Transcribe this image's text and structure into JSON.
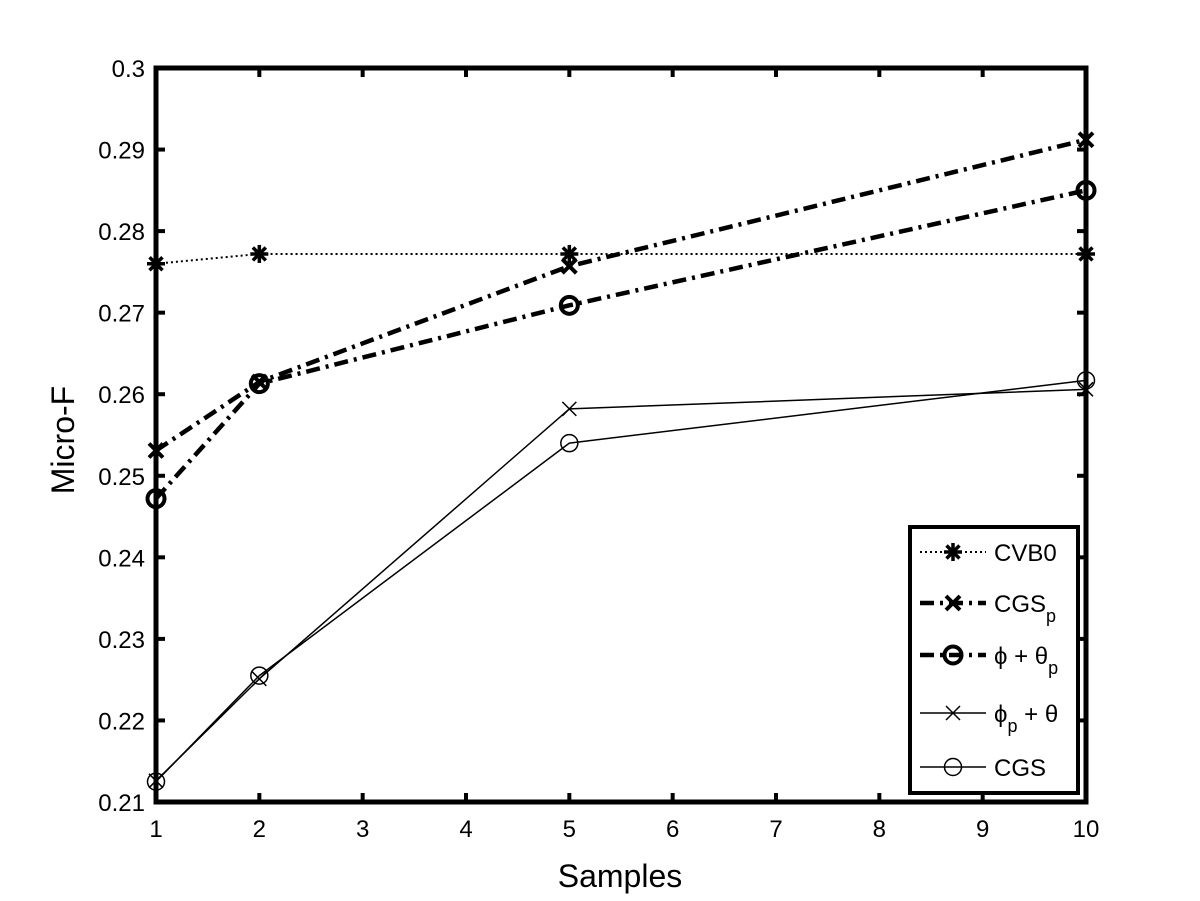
{
  "chart_data": {
    "type": "line",
    "title": "",
    "xlabel": "Samples",
    "ylabel": "Micro-F",
    "xlim": [
      1,
      10
    ],
    "ylim": [
      0.21,
      0.3
    ],
    "xticks": [
      "1",
      "2",
      "3",
      "4",
      "5",
      "6",
      "7",
      "8",
      "9",
      "10"
    ],
    "yticks": [
      "0.21",
      "0.22",
      "0.23",
      "0.24",
      "0.25",
      "0.26",
      "0.27",
      "0.28",
      "0.29",
      "0.3"
    ],
    "x": [
      1,
      2,
      5,
      10
    ],
    "grid": false,
    "legend_position": "bottom-right",
    "series": [
      {
        "name": "CVB0",
        "legend": {
          "base": "CVB0",
          "sub": "",
          "suffix": ""
        },
        "values": [
          0.276,
          0.2772,
          0.2772,
          0.2772
        ],
        "line_style": "dotted",
        "marker": "asterisk",
        "color": "#000000"
      },
      {
        "name": "CGSp",
        "legend": {
          "base": "CGS",
          "sub": "p",
          "suffix": ""
        },
        "values": [
          0.2531,
          0.2615,
          0.2757,
          0.2912
        ],
        "line_style": "dash-dot",
        "marker": "x-bold",
        "color": "#000000"
      },
      {
        "name": "ϕ + θp",
        "legend": {
          "base": "ϕ + θ",
          "sub": "p",
          "suffix": ""
        },
        "values": [
          0.2472,
          0.2613,
          0.2709,
          0.285
        ],
        "line_style": "dash-dot",
        "marker": "circle-bold",
        "color": "#000000"
      },
      {
        "name": "ϕp + θ",
        "legend": {
          "base": "ϕ",
          "sub": "p",
          "suffix": " + θ"
        },
        "values": [
          0.2126,
          0.2251,
          0.2582,
          0.2606
        ],
        "line_style": "solid",
        "marker": "x",
        "color": "#000000"
      },
      {
        "name": "CGS",
        "legend": {
          "base": "CGS",
          "sub": "",
          "suffix": ""
        },
        "values": [
          0.2125,
          0.2255,
          0.254,
          0.2617
        ],
        "line_style": "solid",
        "marker": "circle",
        "color": "#000000"
      }
    ]
  }
}
